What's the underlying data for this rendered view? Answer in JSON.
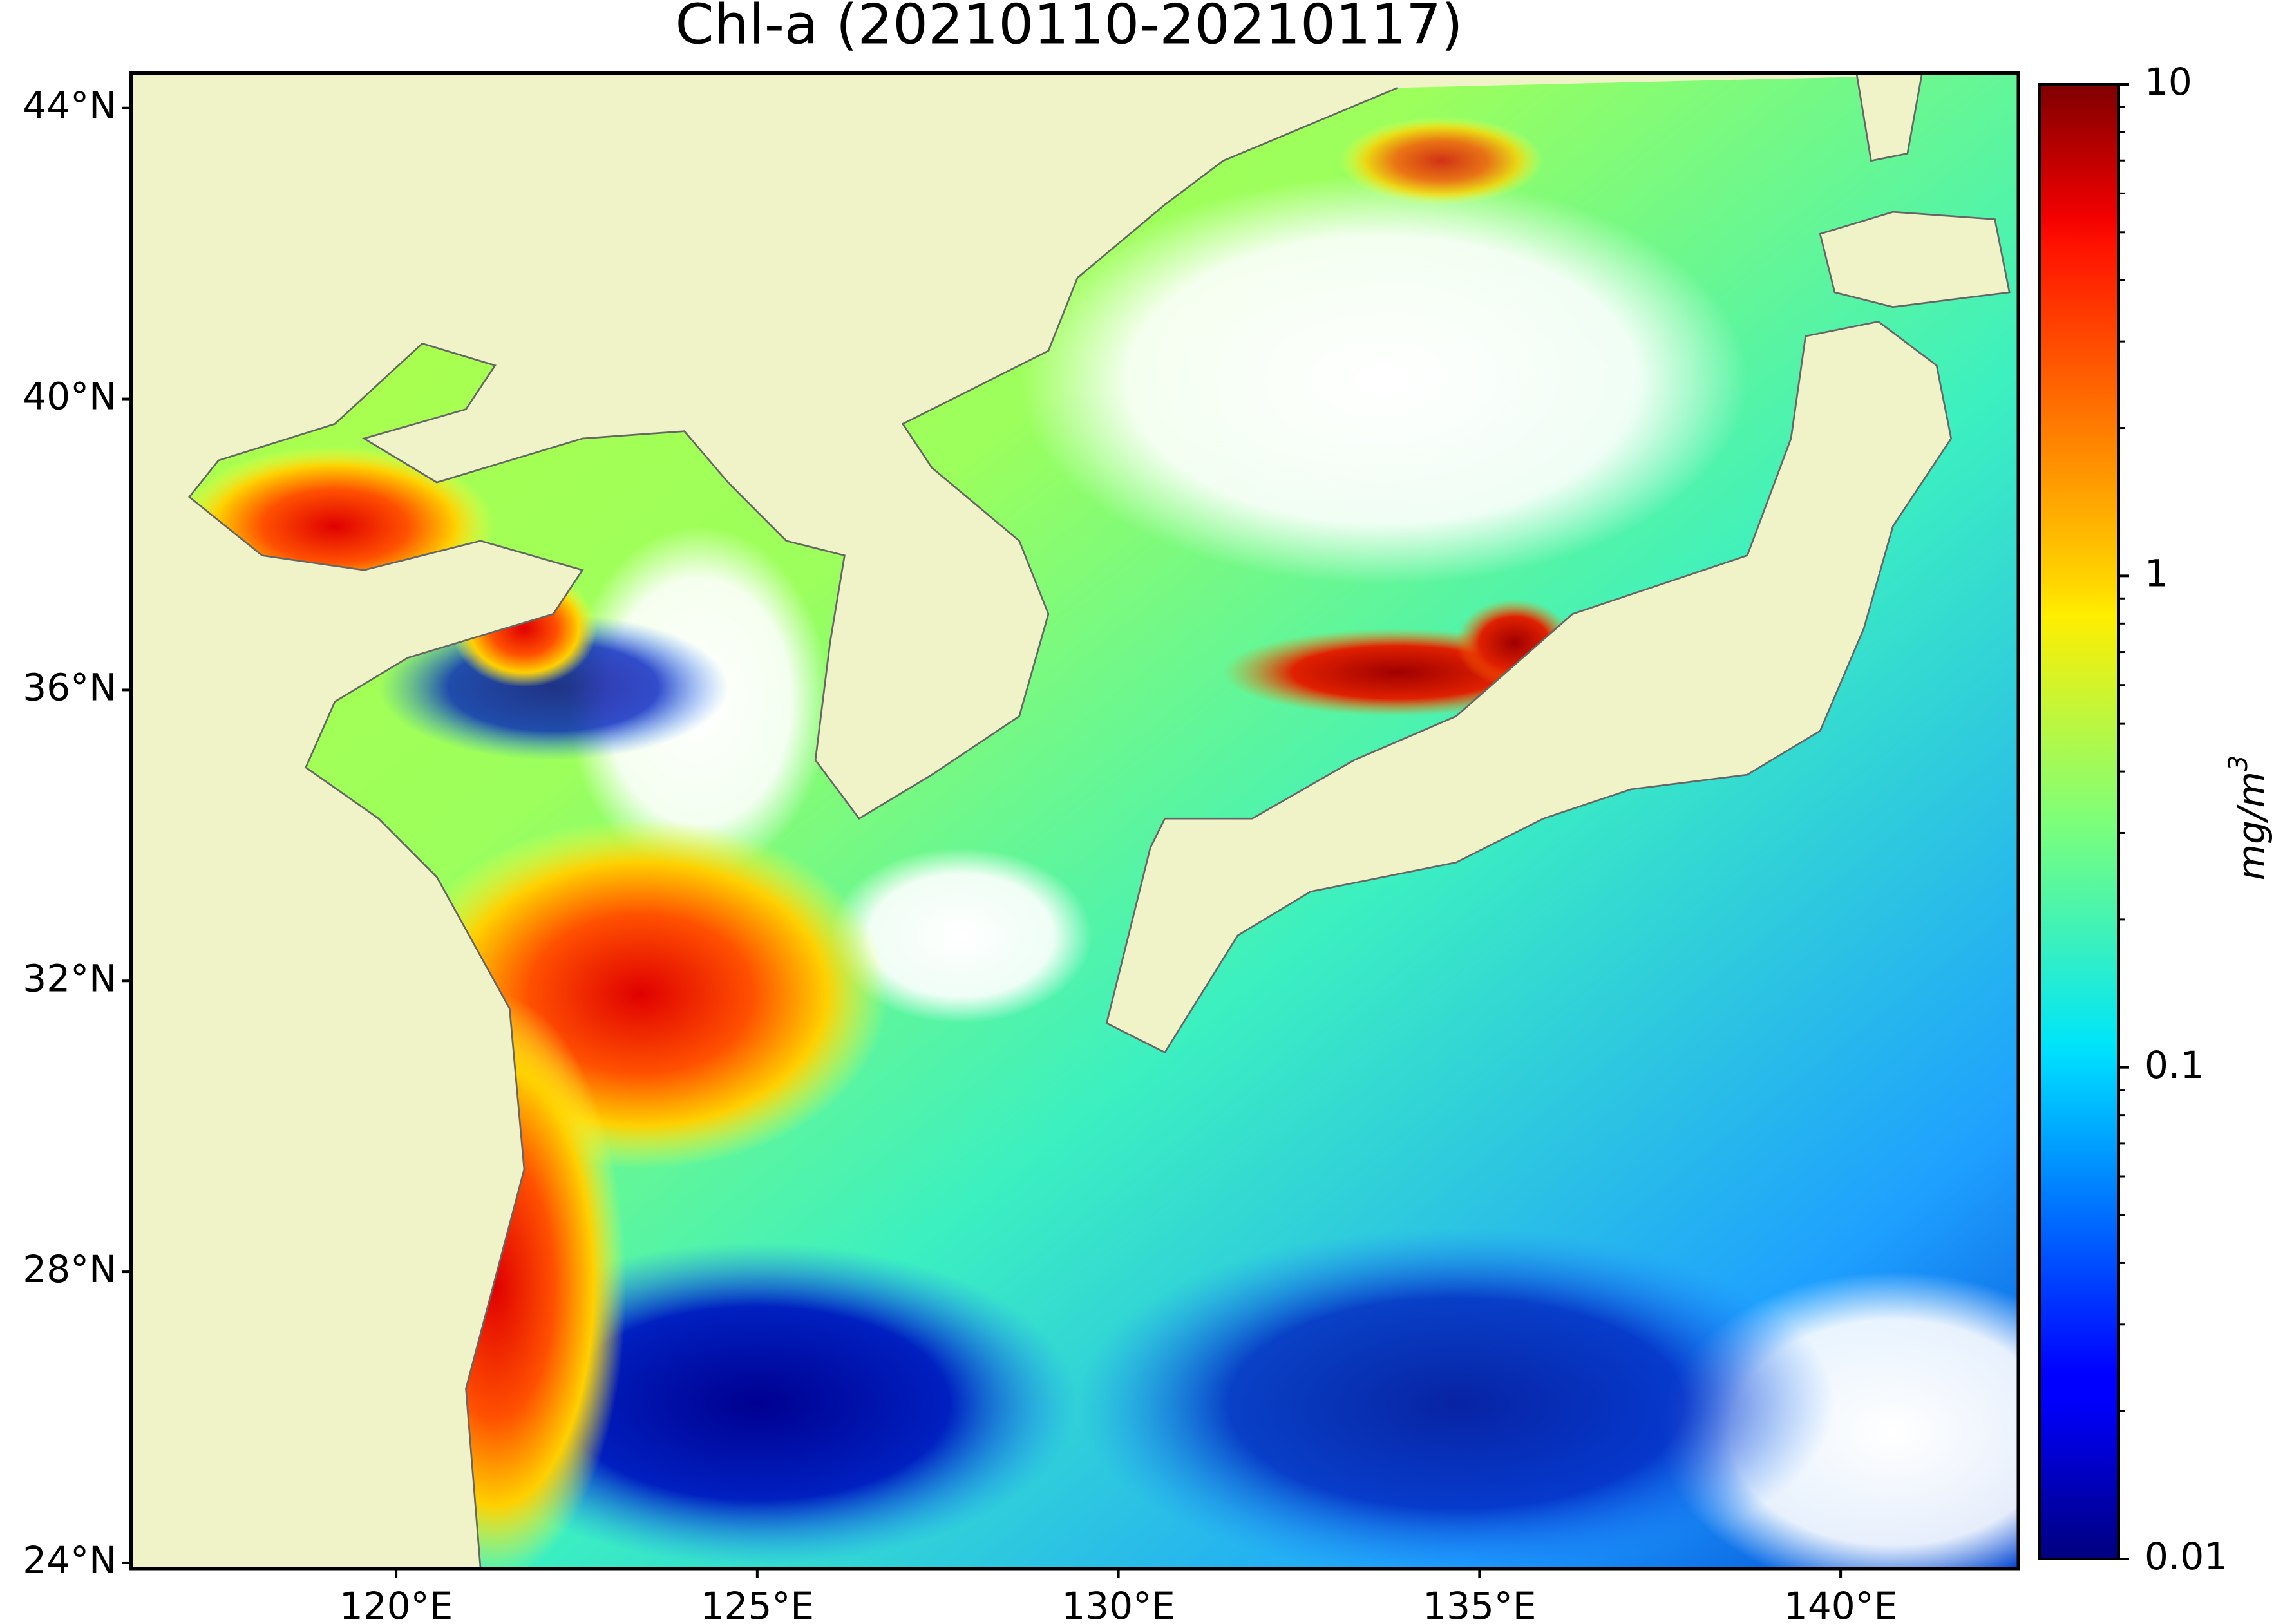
{
  "chart_data": {
    "type": "map",
    "title": "Chl-a (20210110-20210117)",
    "xlim": [
      116.33,
      142.46
    ],
    "ylim": [
      23.92,
      44.48
    ],
    "xticks": [
      {
        "value": 120,
        "label": "120°E"
      },
      {
        "value": 125,
        "label": "125°E"
      },
      {
        "value": 130,
        "label": "130°E"
      },
      {
        "value": 135,
        "label": "135°E"
      },
      {
        "value": 140,
        "label": "140°E"
      }
    ],
    "yticks": [
      {
        "value": 24,
        "label": "24°N"
      },
      {
        "value": 28,
        "label": "28°N"
      },
      {
        "value": 32,
        "label": "32°N"
      },
      {
        "value": 36,
        "label": "36°N"
      },
      {
        "value": 40,
        "label": "40°N"
      },
      {
        "value": 44,
        "label": "44°N"
      }
    ],
    "colorbar": {
      "label": "mg/m",
      "label_superscript": "3",
      "log_scale": true,
      "colormap": "jet",
      "lim": [
        0.01,
        10
      ],
      "ticks": [
        0.01,
        0.1,
        1,
        10
      ],
      "minor_ticks": [
        0.02,
        0.03,
        0.04,
        0.05,
        0.06,
        0.07,
        0.08,
        0.09,
        0.2,
        0.3,
        0.4,
        0.5,
        0.6,
        0.7,
        0.8,
        0.9,
        2,
        3,
        4,
        5,
        6,
        7,
        8,
        9
      ]
    }
  }
}
